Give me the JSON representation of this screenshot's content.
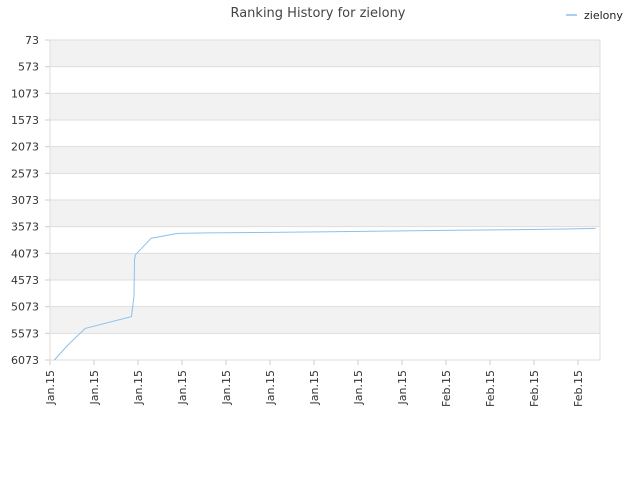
{
  "chart_data": {
    "type": "line",
    "title": "Ranking History for zielony",
    "xlabel": "",
    "ylabel": "",
    "y_inverted": true,
    "ylim": [
      73,
      6073
    ],
    "y_ticks": [
      "73",
      "573",
      "1073",
      "1573",
      "2073",
      "2573",
      "3073",
      "3573",
      "4073",
      "4573",
      "5073",
      "5573",
      "6073"
    ],
    "x_ticks": [
      "Jan.15",
      "Jan.15",
      "Jan.15",
      "Jan.15",
      "Jan.15",
      "Jan.15",
      "Jan.15",
      "Jan.15",
      "Jan.15",
      "Feb.15",
      "Feb.15",
      "Feb.15",
      "Feb.15"
    ],
    "legend": {
      "position": "top-right"
    },
    "grid": true,
    "series": [
      {
        "name": "zielony",
        "color": "#8cc0ee",
        "x": [
          0.1,
          0.4,
          0.8,
          1.85,
          1.91,
          1.92,
          1.94,
          2.3,
          2.9,
          3.6,
          5.0,
          6.4,
          7.8,
          9.2,
          10.5,
          11.9,
          12.4
        ],
        "y": [
          6073,
          5800,
          5480,
          5260,
          4880,
          4200,
          4100,
          3790,
          3700,
          3690,
          3680,
          3670,
          3655,
          3640,
          3630,
          3615,
          3605
        ]
      }
    ]
  },
  "colors": {
    "band": "#f2f2f2",
    "grid": "#dddddd",
    "line": "#8cc0ee"
  }
}
